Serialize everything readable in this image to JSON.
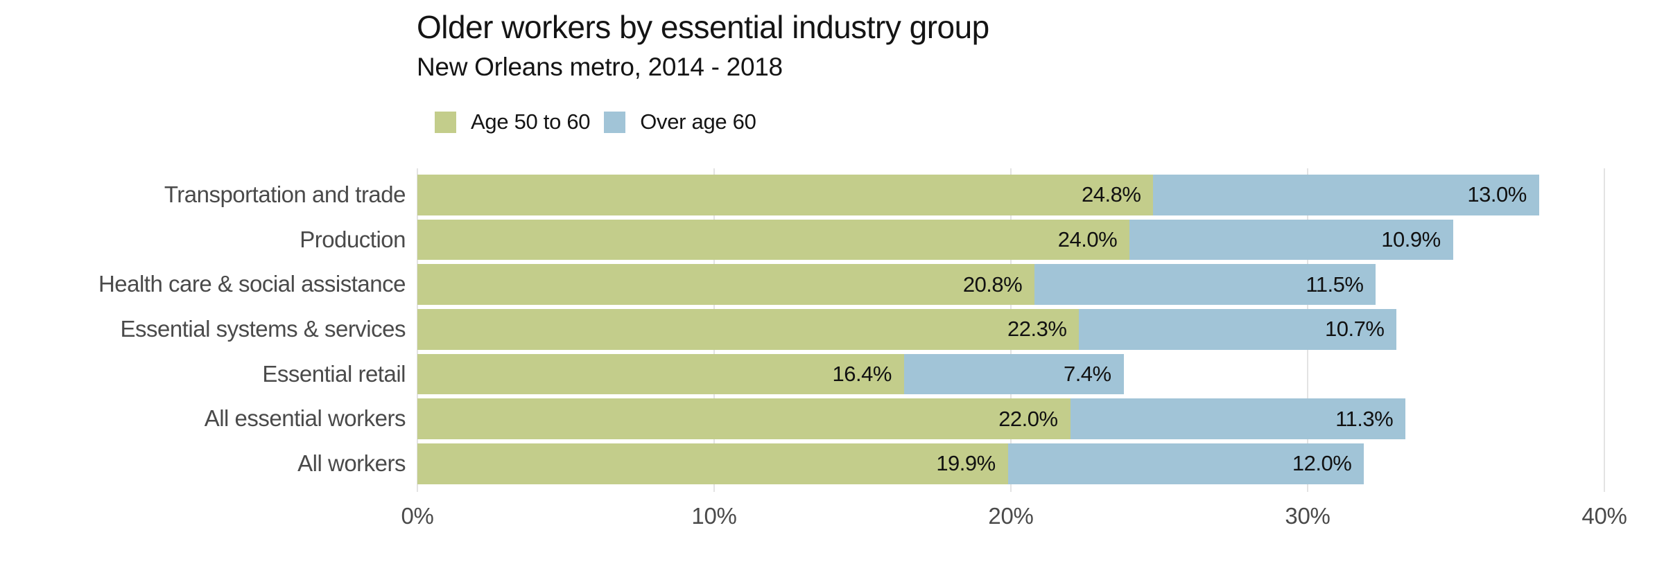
{
  "header": {
    "title": "Older workers by essential industry group",
    "subtitle": "New Orleans metro, 2014 - 2018"
  },
  "colors": {
    "background": "#ffffff",
    "gridline": "#e3e3e3",
    "title_text": "#141414",
    "category_label_text": "#4a4a4a",
    "axis_label_text": "#4a4a4a",
    "value_label_text": "#111111",
    "age_50_to_60": "#c3cd8b",
    "over_age_60": "#a1c4d7"
  },
  "chart_data": {
    "type": "bar",
    "orientation": "horizontal",
    "stacked": true,
    "title": "Older workers by essential industry group",
    "subtitle": "New Orleans metro, 2014 - 2018",
    "categories": [
      "Transportation and trade",
      "Production",
      "Health care & social assistance",
      "Essential systems & services",
      "Essential retail",
      "All essential workers",
      "All workers"
    ],
    "series": [
      {
        "name": "Age 50 to 60",
        "color": "#c3cd8b",
        "values": [
          24.8,
          24.0,
          20.8,
          22.3,
          16.4,
          22.0,
          19.9
        ],
        "value_labels": [
          "24.8%",
          "24.0%",
          "20.8%",
          "22.3%",
          "16.4%",
          "22.0%",
          "19.9%"
        ]
      },
      {
        "name": "Over age 60",
        "color": "#a1c4d7",
        "values": [
          13.0,
          10.9,
          11.5,
          10.7,
          7.4,
          11.3,
          12.0
        ],
        "value_labels": [
          "13.0%",
          "10.9%",
          "11.5%",
          "10.7%",
          "7.4%",
          "11.3%",
          "12.0%"
        ]
      }
    ],
    "xlabel": "",
    "ylabel": "",
    "x_axis": {
      "min": 0,
      "max": 40,
      "ticks": [
        0,
        10,
        20,
        30,
        40
      ],
      "tick_labels": [
        "0%",
        "10%",
        "20%",
        "30%",
        "40%"
      ]
    },
    "grid": true,
    "legend_position": "top-left",
    "value_labels_position": "inside-end"
  }
}
